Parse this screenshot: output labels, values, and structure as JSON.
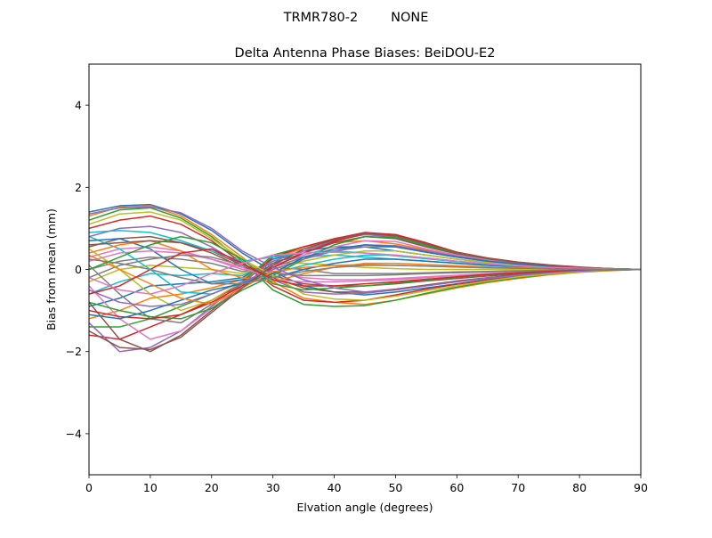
{
  "chart_data": {
    "type": "line",
    "suptitle": "TRMR780-2        NONE",
    "title": "Delta Antenna Phase Biases: BeiDOU-E2",
    "xlabel": "Elvation angle (degrees)",
    "ylabel": "Bias from mean (mm)",
    "xlim": [
      0,
      90
    ],
    "ylim": [
      -5,
      5
    ],
    "xticks": [
      0,
      10,
      20,
      30,
      40,
      50,
      60,
      70,
      80,
      90
    ],
    "yticks": [
      -4,
      -2,
      0,
      2,
      4
    ],
    "ytick_labels": [
      "−4",
      "−2",
      "0",
      "2",
      "4"
    ],
    "grid": false,
    "legend": "none",
    "x": [
      0,
      5,
      10,
      15,
      20,
      25,
      30,
      35,
      40,
      45,
      50,
      55,
      60,
      65,
      70,
      75,
      80,
      85,
      90
    ],
    "series": [
      {
        "values": [
          1.4,
          1.55,
          1.58,
          1.35,
          0.95,
          0.4,
          -0.05,
          -0.4,
          -0.55,
          -0.62,
          -0.55,
          -0.45,
          -0.35,
          -0.25,
          -0.17,
          -0.1,
          -0.06,
          -0.02,
          0.0
        ]
      },
      {
        "values": [
          1.3,
          1.52,
          1.55,
          1.3,
          0.85,
          0.3,
          -0.3,
          -0.7,
          -0.8,
          -0.85,
          -0.75,
          -0.6,
          -0.45,
          -0.32,
          -0.22,
          -0.13,
          -0.07,
          -0.03,
          0.0
        ]
      },
      {
        "values": [
          1.2,
          1.45,
          1.5,
          1.25,
          0.8,
          0.2,
          -0.5,
          -0.85,
          -0.9,
          -0.88,
          -0.75,
          -0.58,
          -0.43,
          -0.3,
          -0.2,
          -0.12,
          -0.06,
          -0.02,
          0.0
        ]
      },
      {
        "values": [
          1.0,
          1.2,
          1.3,
          1.1,
          0.7,
          0.15,
          -0.4,
          -0.75,
          -0.8,
          -0.75,
          -0.62,
          -0.48,
          -0.36,
          -0.26,
          -0.17,
          -0.1,
          -0.05,
          -0.02,
          0.0
        ]
      },
      {
        "values": [
          0.8,
          1.0,
          1.05,
          0.9,
          0.55,
          0.1,
          -0.25,
          -0.55,
          -0.6,
          -0.58,
          -0.5,
          -0.4,
          -0.3,
          -0.22,
          -0.15,
          -0.09,
          -0.05,
          -0.02,
          0.0
        ]
      },
      {
        "values": [
          0.55,
          0.75,
          0.8,
          0.65,
          0.4,
          0.05,
          -0.15,
          -0.35,
          -0.4,
          -0.4,
          -0.35,
          -0.28,
          -0.22,
          -0.16,
          -0.11,
          -0.07,
          -0.04,
          -0.01,
          0.0
        ]
      },
      {
        "values": [
          0.3,
          0.5,
          0.55,
          0.45,
          0.25,
          0.0,
          -0.05,
          -0.2,
          -0.25,
          -0.25,
          -0.22,
          -0.18,
          -0.14,
          -0.1,
          -0.07,
          -0.04,
          -0.02,
          -0.01,
          0.0
        ]
      },
      {
        "values": [
          0.0,
          0.2,
          0.3,
          0.25,
          0.15,
          -0.05,
          0.05,
          0.0,
          -0.1,
          -0.1,
          -0.1,
          -0.08,
          -0.06,
          -0.05,
          -0.03,
          -0.02,
          -0.01,
          0.0,
          0.0
        ]
      },
      {
        "values": [
          -0.3,
          0.0,
          0.1,
          0.05,
          0.0,
          -0.1,
          0.15,
          0.15,
          0.1,
          0.05,
          0.02,
          0.0,
          0.0,
          0.0,
          0.0,
          0.0,
          0.0,
          0.0,
          0.0
        ]
      },
      {
        "values": [
          -0.6,
          -0.3,
          -0.1,
          -0.15,
          -0.1,
          -0.15,
          0.2,
          0.3,
          0.35,
          0.3,
          0.25,
          0.2,
          0.15,
          0.1,
          0.07,
          0.04,
          0.02,
          0.01,
          0.0
        ]
      },
      {
        "values": [
          -0.9,
          -0.7,
          -0.4,
          -0.35,
          -0.3,
          -0.2,
          0.25,
          0.45,
          0.55,
          0.55,
          0.45,
          0.35,
          0.25,
          0.17,
          0.11,
          0.07,
          0.04,
          0.01,
          0.0
        ]
      },
      {
        "values": [
          -1.2,
          -1.0,
          -0.7,
          -0.6,
          -0.45,
          -0.25,
          0.3,
          0.5,
          0.65,
          0.7,
          0.62,
          0.48,
          0.35,
          0.24,
          0.15,
          0.09,
          0.05,
          0.02,
          0.0
        ]
      },
      {
        "values": [
          -1.4,
          -1.4,
          -1.2,
          -0.9,
          -0.6,
          -0.3,
          0.35,
          0.55,
          0.72,
          0.85,
          0.8,
          0.6,
          0.4,
          0.27,
          0.17,
          0.1,
          0.05,
          0.02,
          0.0
        ]
      },
      {
        "values": [
          -1.6,
          -1.7,
          -1.4,
          -1.1,
          -0.75,
          -0.35,
          0.3,
          0.55,
          0.75,
          0.9,
          0.85,
          0.65,
          0.42,
          0.28,
          0.18,
          0.11,
          0.06,
          0.02,
          0.0
        ]
      },
      {
        "values": [
          -1.3,
          -2.0,
          -1.9,
          -1.5,
          -0.9,
          -0.3,
          0.2,
          0.45,
          0.7,
          0.85,
          0.8,
          0.6,
          0.4,
          0.26,
          0.17,
          0.1,
          0.05,
          0.02,
          0.0
        ]
      },
      {
        "values": [
          -0.8,
          -1.7,
          -2.0,
          -1.6,
          -1.0,
          -0.4,
          0.15,
          0.4,
          0.65,
          0.8,
          0.75,
          0.55,
          0.38,
          0.25,
          0.16,
          0.1,
          0.05,
          0.02,
          0.0
        ]
      },
      {
        "values": [
          -0.4,
          -1.2,
          -1.7,
          -1.5,
          -0.95,
          -0.4,
          0.1,
          0.35,
          0.55,
          0.7,
          0.68,
          0.5,
          0.35,
          0.23,
          0.15,
          0.09,
          0.05,
          0.02,
          0.0
        ]
      },
      {
        "values": [
          0.1,
          -0.6,
          -1.2,
          -1.3,
          -0.85,
          -0.35,
          0.05,
          0.3,
          0.45,
          0.55,
          0.55,
          0.42,
          0.3,
          0.2,
          0.13,
          0.08,
          0.04,
          0.01,
          0.0
        ]
      },
      {
        "values": [
          0.5,
          0.0,
          -0.6,
          -1.0,
          -0.75,
          -0.3,
          0.0,
          0.2,
          0.35,
          0.45,
          0.45,
          0.35,
          0.25,
          0.17,
          0.11,
          0.07,
          0.04,
          0.01,
          0.0
        ]
      },
      {
        "values": [
          0.8,
          0.5,
          0.0,
          -0.55,
          -0.6,
          -0.3,
          -0.1,
          0.1,
          0.25,
          0.35,
          0.35,
          0.28,
          0.2,
          0.14,
          0.09,
          0.06,
          0.03,
          0.01,
          0.0
        ]
      },
      {
        "values": [
          0.7,
          0.75,
          0.5,
          0.0,
          -0.35,
          -0.25,
          -0.2,
          0.0,
          0.15,
          0.25,
          0.25,
          0.2,
          0.15,
          0.1,
          0.07,
          0.04,
          0.02,
          0.01,
          0.0
        ]
      },
      {
        "values": [
          0.4,
          0.6,
          0.7,
          0.45,
          0.0,
          -0.2,
          -0.3,
          -0.1,
          0.05,
          0.15,
          0.15,
          0.12,
          0.09,
          0.06,
          0.04,
          0.03,
          0.01,
          0.0,
          0.0
        ]
      },
      {
        "values": [
          -0.8,
          -1.0,
          -1.15,
          -1.2,
          -0.95,
          -0.5,
          -0.15,
          0.25,
          0.6,
          0.8,
          0.78,
          0.58,
          0.4,
          0.26,
          0.17,
          0.1,
          0.05,
          0.02,
          0.0
        ]
      },
      {
        "values": [
          -1.0,
          -1.15,
          -1.2,
          -1.1,
          -0.8,
          -0.4,
          0.05,
          0.4,
          0.68,
          0.88,
          0.85,
          0.63,
          0.42,
          0.27,
          0.17,
          0.1,
          0.05,
          0.02,
          0.0
        ]
      },
      {
        "values": [
          -0.5,
          -0.8,
          -0.9,
          -0.85,
          -0.6,
          -0.3,
          0.0,
          0.25,
          0.45,
          0.6,
          0.58,
          0.45,
          0.32,
          0.21,
          0.14,
          0.08,
          0.04,
          0.01,
          0.0
        ]
      },
      {
        "values": [
          0.6,
          0.65,
          0.7,
          0.65,
          0.45,
          0.1,
          -0.2,
          -0.45,
          -0.55,
          -0.55,
          -0.48,
          -0.38,
          -0.28,
          -0.2,
          -0.13,
          -0.08,
          -0.04,
          -0.01,
          0.0
        ]
      },
      {
        "values": [
          0.2,
          0.4,
          0.45,
          0.4,
          0.25,
          0.05,
          -0.25,
          -0.3,
          -0.3,
          -0.28,
          -0.25,
          -0.2,
          -0.15,
          -0.11,
          -0.07,
          -0.04,
          -0.02,
          -0.01,
          0.0
        ]
      },
      {
        "values": [
          -0.2,
          0.1,
          0.25,
          0.35,
          0.3,
          0.1,
          -0.1,
          -0.15,
          -0.15,
          -0.15,
          -0.13,
          -0.1,
          -0.08,
          -0.06,
          -0.04,
          -0.02,
          -0.01,
          0.0,
          0.0
        ]
      },
      {
        "values": [
          1.1,
          1.35,
          1.4,
          1.2,
          0.75,
          0.25,
          -0.15,
          -0.6,
          -0.72,
          -0.75,
          -0.65,
          -0.52,
          -0.4,
          -0.28,
          -0.18,
          -0.11,
          -0.06,
          -0.02,
          0.0
        ]
      },
      {
        "values": [
          0.9,
          0.95,
          0.9,
          0.7,
          0.45,
          0.2,
          0.3,
          0.4,
          0.45,
          0.4,
          0.33,
          0.26,
          0.19,
          0.13,
          0.08,
          0.05,
          0.03,
          0.01,
          0.0
        ]
      },
      {
        "values": [
          -1.1,
          -1.2,
          -1.0,
          -0.75,
          -0.5,
          -0.35,
          -0.1,
          0.3,
          0.5,
          0.6,
          0.55,
          0.42,
          0.3,
          0.2,
          0.13,
          0.08,
          0.04,
          0.01,
          0.0
        ]
      },
      {
        "values": [
          0.35,
          0.0,
          -0.35,
          -0.7,
          -0.85,
          -0.45,
          -0.05,
          0.05,
          0.1,
          0.12,
          0.1,
          0.08,
          0.06,
          0.04,
          0.03,
          0.02,
          0.01,
          0.0,
          0.0
        ]
      },
      {
        "values": [
          0.0,
          0.3,
          0.6,
          0.8,
          0.65,
          0.25,
          -0.35,
          -0.5,
          -0.45,
          -0.4,
          -0.33,
          -0.26,
          -0.19,
          -0.13,
          -0.08,
          -0.05,
          -0.03,
          -0.01,
          0.0
        ]
      },
      {
        "values": [
          -0.6,
          -0.4,
          0.0,
          0.4,
          0.5,
          0.15,
          -0.25,
          -0.4,
          -0.4,
          -0.35,
          -0.3,
          -0.24,
          -0.18,
          -0.12,
          -0.08,
          -0.05,
          -0.02,
          -0.01,
          0.0
        ]
      },
      {
        "values": [
          1.35,
          1.5,
          1.52,
          1.38,
          1.0,
          0.45,
          0.05,
          -0.25,
          -0.45,
          -0.55,
          -0.5,
          -0.4,
          -0.3,
          -0.21,
          -0.14,
          -0.08,
          -0.04,
          -0.01,
          0.0
        ]
      },
      {
        "values": [
          -1.5,
          -1.9,
          -1.95,
          -1.65,
          -1.05,
          -0.45,
          0.1,
          0.5,
          0.72,
          0.88,
          0.82,
          0.62,
          0.41,
          0.27,
          0.17,
          0.1,
          0.05,
          0.02,
          0.0
        ]
      },
      {
        "values": [
          -0.2,
          -0.5,
          -0.6,
          -0.4,
          -0.1,
          0.15,
          0.35,
          0.4,
          0.42,
          0.4,
          0.35,
          0.28,
          0.2,
          0.14,
          0.09,
          0.05,
          0.03,
          0.01,
          0.0
        ]
      },
      {
        "values": [
          0.25,
          0.15,
          0.0,
          -0.2,
          -0.35,
          -0.35,
          -0.2,
          -0.05,
          0.05,
          0.1,
          0.1,
          0.08,
          0.06,
          0.04,
          0.03,
          0.02,
          0.01,
          0.0,
          0.0
        ]
      }
    ]
  },
  "series_colors": [
    "#1f77b4",
    "#ff7f0e",
    "#2ca02c",
    "#d62728",
    "#9467bd",
    "#8c564b",
    "#e377c2",
    "#7f7f7f",
    "#bcbd22",
    "#17becf"
  ]
}
